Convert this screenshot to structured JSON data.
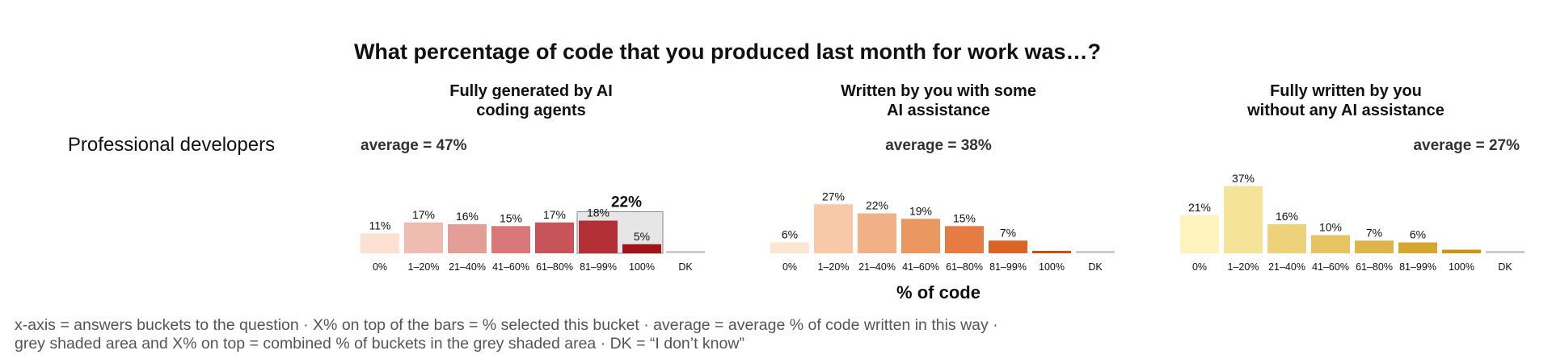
{
  "title": "What percentage of code that you produced last month for work was…?",
  "row_label": "Professional developers",
  "xlabel": "% of code",
  "notes": [
    "x-axis = answers buckets to the question · X% on top of the bars = % selected this bucket · average = average % of code written in this way ·",
    "grey shaded area and X% on top = combined % of buckets in the grey shaded area · DK = “I don’t know”"
  ],
  "chart_data": [
    {
      "type": "bar",
      "title": "Fully generated by AI coding agents",
      "title_lines": [
        "Fully generated by AI",
        "coding agents"
      ],
      "average_label": "average = 47%",
      "categories": [
        "0%",
        "1–20%",
        "21–40%",
        "41–60%",
        "61–80%",
        "81–99%",
        "100%",
        "DK"
      ],
      "values": [
        11,
        17,
        16,
        15,
        17,
        18,
        5,
        1
      ],
      "labels": [
        "11%",
        "17%",
        "16%",
        "15%",
        "17%",
        "18%",
        "5%",
        ""
      ],
      "colors": [
        "#fde0d2",
        "#efbcb1",
        "#e39e97",
        "#d8787a",
        "#c65459",
        "#b22f35",
        "#a01419",
        "#cccccc"
      ],
      "highlight": {
        "categories": [
          "81–99%",
          "100%"
        ],
        "label": "22%",
        "fill": "#e6e6e6",
        "stroke": "#888888"
      },
      "ylim": [
        0,
        40
      ]
    },
    {
      "type": "bar",
      "title": "Written by you with some AI assistance",
      "title_lines": [
        "Written by you with some",
        "AI assistance"
      ],
      "average_label": "average = 38%",
      "categories": [
        "0%",
        "1–20%",
        "21–40%",
        "41–60%",
        "61–80%",
        "81–99%",
        "100%",
        "DK"
      ],
      "values": [
        6,
        27,
        22,
        19,
        15,
        7,
        1,
        1
      ],
      "labels": [
        "6%",
        "27%",
        "22%",
        "19%",
        "15%",
        "7%",
        "",
        ""
      ],
      "colors": [
        "#fde5d4",
        "#f8c9a8",
        "#f1b085",
        "#eb9762",
        "#e47c44",
        "#db6326",
        "#cc4e12",
        "#cccccc"
      ],
      "ylim": [
        0,
        40
      ]
    },
    {
      "type": "bar",
      "title": "Fully written by you without any AI assistance",
      "title_lines": [
        "Fully written by you",
        "without any AI assistance"
      ],
      "average_label": "average = 27%",
      "categories": [
        "0%",
        "1–20%",
        "21–40%",
        "41–60%",
        "61–80%",
        "81–99%",
        "100%",
        "DK"
      ],
      "values": [
        21,
        37,
        16,
        10,
        7,
        6,
        2,
        1
      ],
      "labels": [
        "21%",
        "37%",
        "16%",
        "10%",
        "7%",
        "6%",
        "",
        ""
      ],
      "colors": [
        "#fdf4bd",
        "#f6e39a",
        "#edd17b",
        "#e5c462",
        "#ddb54a",
        "#d5a730",
        "#c99513",
        "#cccccc"
      ],
      "ylim": [
        0,
        40
      ]
    }
  ]
}
